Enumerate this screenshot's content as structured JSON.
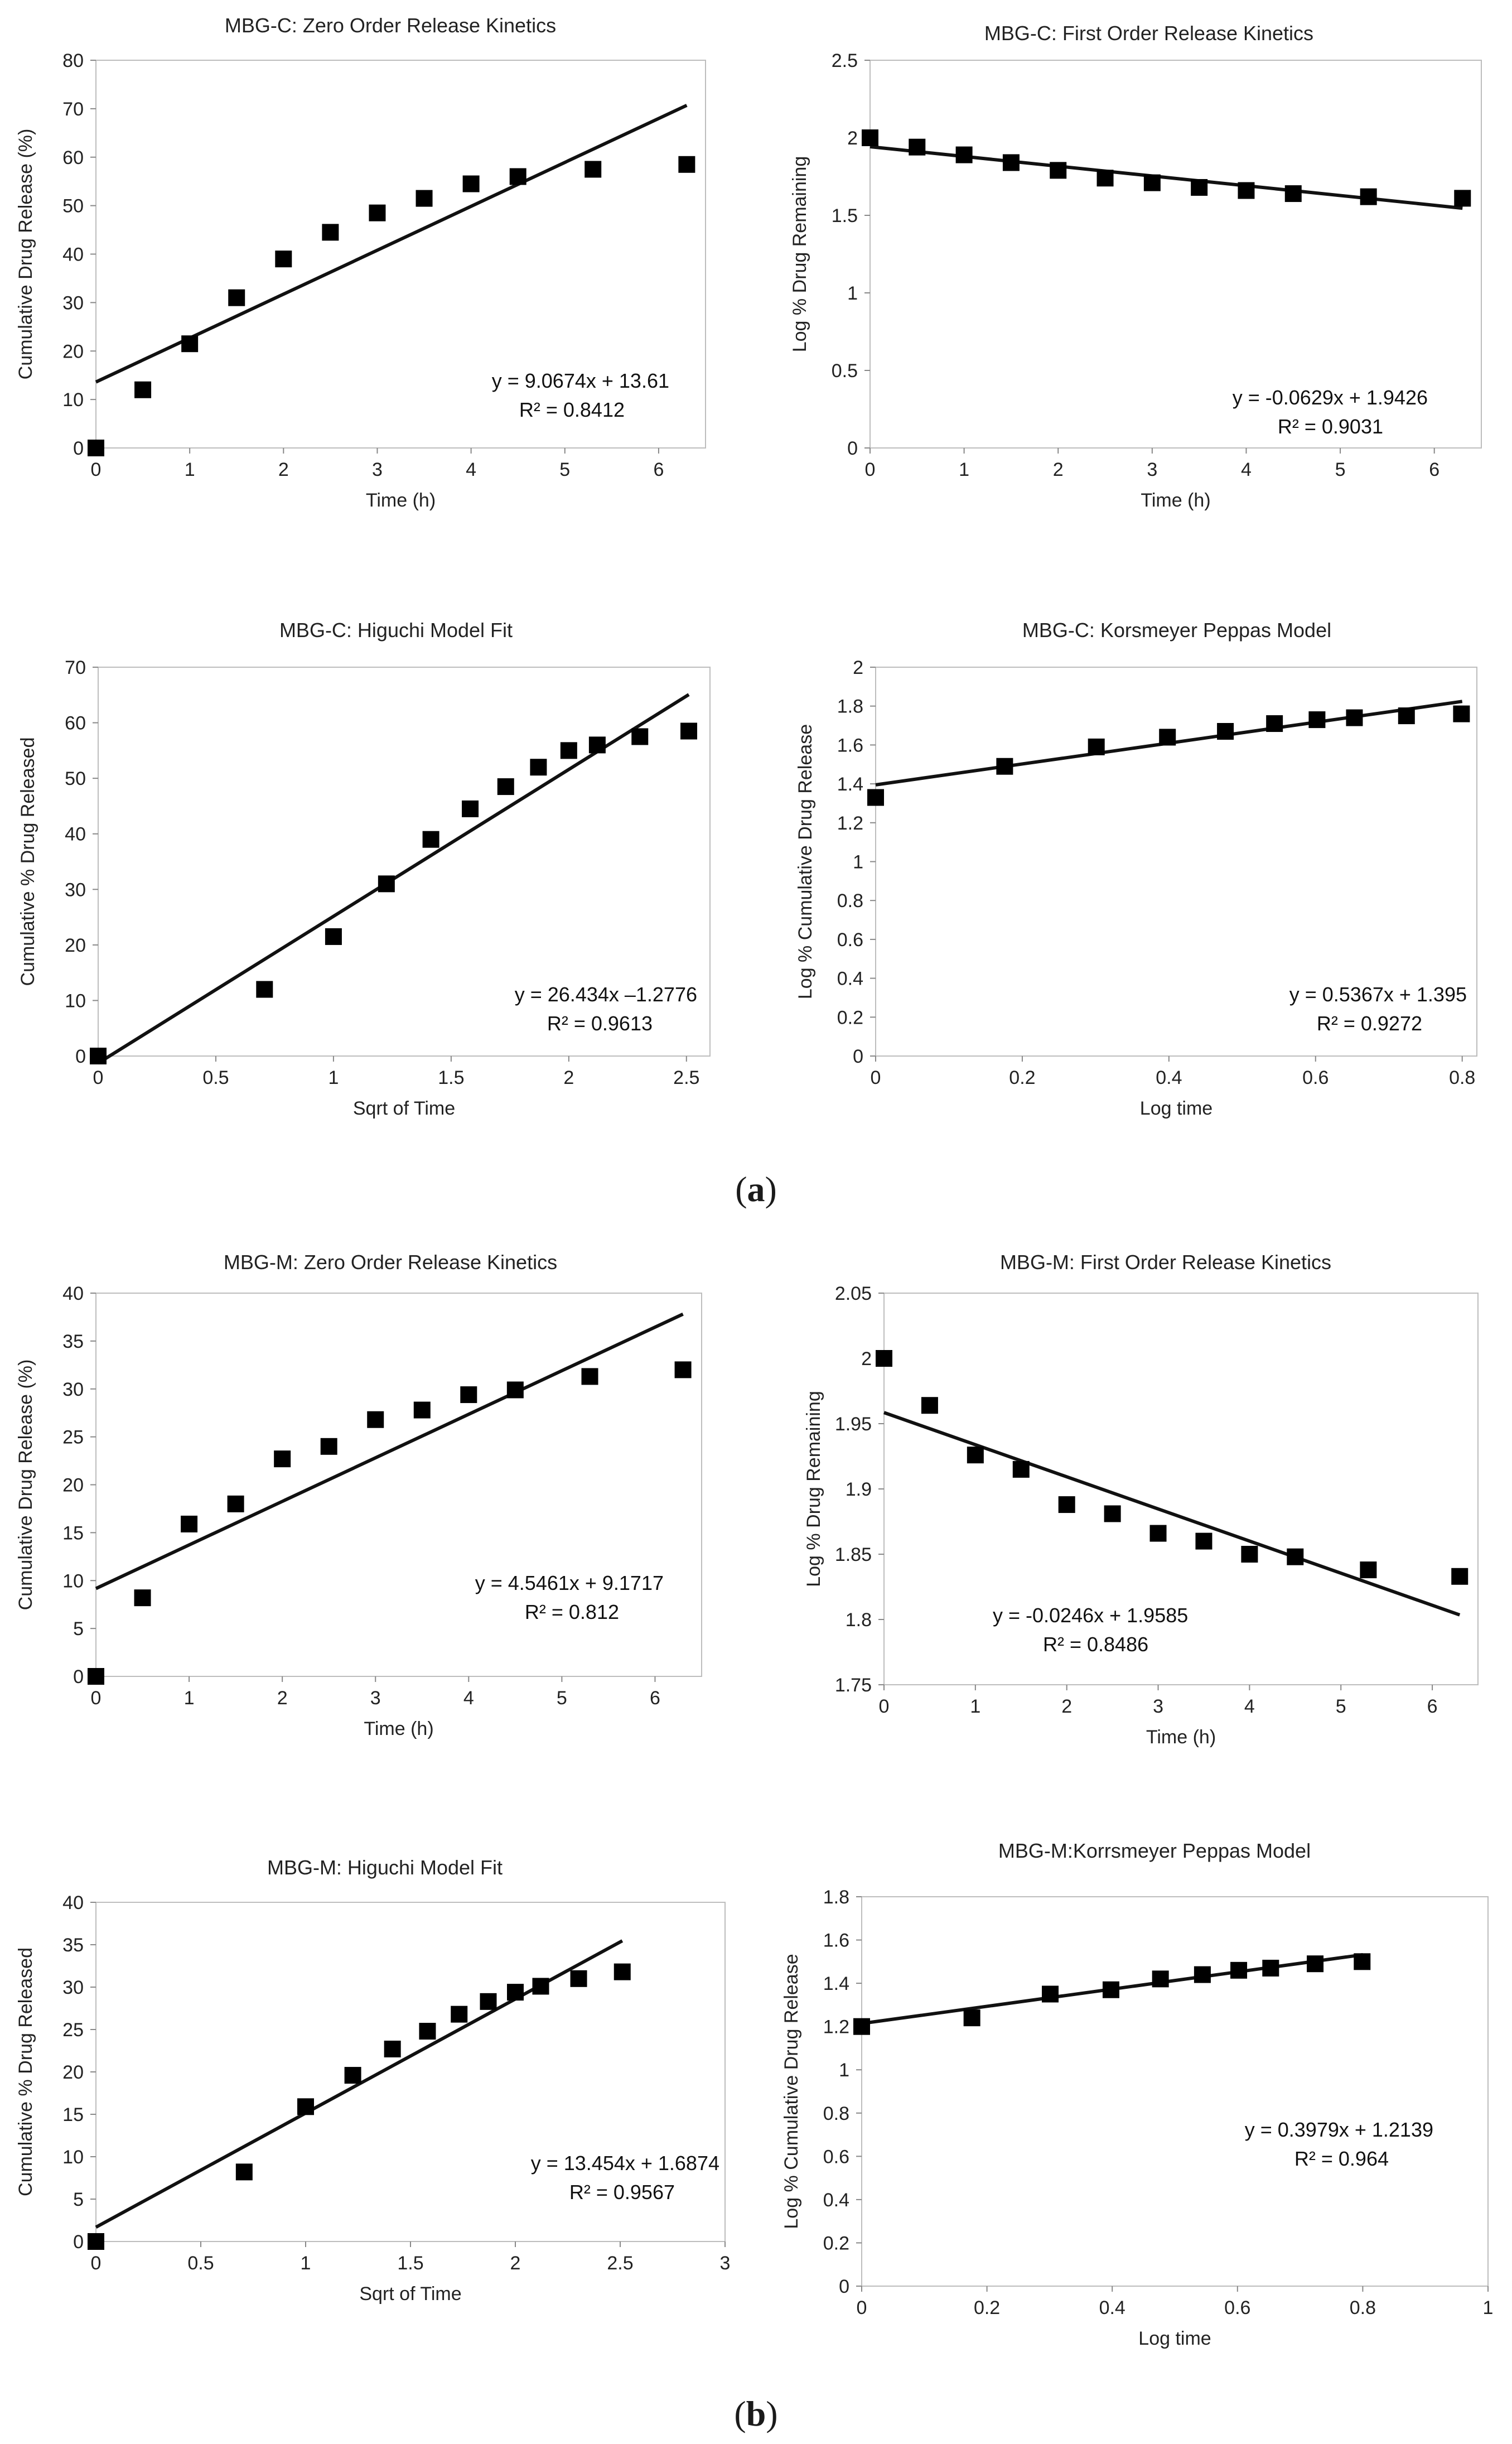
{
  "panel_labels": {
    "a": "a",
    "b": "b"
  },
  "chart_data": [
    {
      "id": "c1",
      "type": "scatter",
      "title": "MBG-C: Zero Order Release Kinetics",
      "xlabel": "Time (h)",
      "ylabel": "Cumulative Drug Release (%)",
      "xlim": [
        0,
        6.5
      ],
      "ylim": [
        0,
        80
      ],
      "xticks": [
        0,
        1,
        2,
        3,
        4,
        5,
        6
      ],
      "yticks": [
        0,
        10,
        20,
        30,
        40,
        50,
        60,
        70,
        80
      ],
      "xtick_labels": [
        "0",
        "1",
        "2",
        "3",
        "4",
        "5",
        "6"
      ],
      "ytick_labels": [
        "0",
        "10",
        "20",
        "30",
        "40",
        "50",
        "60",
        "70",
        "80"
      ],
      "grid": false,
      "x": [
        0,
        0.5,
        1,
        1.5,
        2,
        2.5,
        3,
        3.5,
        4,
        4.5,
        5.3,
        6.3
      ],
      "y": [
        0,
        12,
        21.5,
        31,
        39,
        44.5,
        48.5,
        51.5,
        54.5,
        56,
        57.5,
        58.5
      ],
      "trendline": {
        "x": [
          0,
          6.3
        ],
        "y": [
          13.61,
          70.7
        ]
      },
      "equation": "y = 9.0674x + 13.61",
      "r2": "R² = 0.8412"
    },
    {
      "id": "c2",
      "type": "scatter",
      "title": "MBG-C: First Order Release Kinetics",
      "xlabel": "Time (h)",
      "ylabel": "Log % Drug Remaining",
      "xlim": [
        0,
        6.5
      ],
      "ylim": [
        0,
        2.5
      ],
      "xticks": [
        0,
        1,
        2,
        3,
        4,
        5,
        6
      ],
      "yticks": [
        0,
        0.5,
        1,
        1.5,
        2,
        2.5
      ],
      "xtick_labels": [
        "0",
        "1",
        "2",
        "3",
        "4",
        "5",
        "6"
      ],
      "ytick_labels": [
        "0",
        "0.5",
        "1",
        "1.5",
        "2",
        "2.5"
      ],
      "grid": false,
      "x": [
        0,
        0.5,
        1,
        1.5,
        2,
        2.5,
        3,
        3.5,
        4,
        4.5,
        5.3,
        6.3
      ],
      "y": [
        2.0,
        1.94,
        1.89,
        1.84,
        1.79,
        1.74,
        1.71,
        1.68,
        1.66,
        1.64,
        1.62,
        1.61
      ],
      "trendline": {
        "x": [
          0,
          6.3
        ],
        "y": [
          1.9426,
          1.546
        ]
      },
      "equation": "y = -0.0629x + 1.9426",
      "r2": "R² = 0.9031"
    },
    {
      "id": "c3",
      "type": "scatter",
      "title": "MBG-C: Higuchi Model Fit",
      "xlabel": "Sqrt of Time",
      "ylabel": "Cumulative % Drug Released",
      "xlim": [
        0,
        2.6
      ],
      "ylim": [
        0,
        70
      ],
      "xticks": [
        0,
        0.5,
        1,
        1.5,
        2,
        2.5
      ],
      "yticks": [
        0,
        10,
        20,
        30,
        40,
        50,
        60,
        70
      ],
      "xtick_labels": [
        "0",
        "0.5",
        "1",
        "1.5",
        "2",
        "2.5"
      ],
      "ytick_labels": [
        "0",
        "10",
        "20",
        "30",
        "40",
        "50",
        "60",
        "70"
      ],
      "grid": false,
      "x": [
        0,
        0.707,
        1,
        1.225,
        1.414,
        1.581,
        1.732,
        1.871,
        2,
        2.121,
        2.302,
        2.51
      ],
      "y": [
        0,
        12,
        21.5,
        31,
        39,
        44.5,
        48.5,
        52,
        55,
        56,
        57.5,
        58.5
      ],
      "trendline": {
        "x": [
          0,
          2.51
        ],
        "y": [
          -1.2776,
          65.07
        ]
      },
      "equation": "y = 26.434x –1.2776",
      "r2": "R² = 0.9613"
    },
    {
      "id": "c4",
      "type": "scatter",
      "title": "MBG-C: Korsmeyer Peppas Model",
      "xlabel": "Log time",
      "ylabel": "Log % Cumulative Drug Release",
      "xlim": [
        0,
        0.82
      ],
      "ylim": [
        0,
        2
      ],
      "xticks": [
        0,
        0.2,
        0.4,
        0.6,
        0.8
      ],
      "yticks": [
        0,
        0.2,
        0.4,
        0.6,
        0.8,
        1,
        1.2,
        1.4,
        1.6,
        1.8,
        2
      ],
      "xtick_labels": [
        "0",
        "0.2",
        "0.4",
        "0.6",
        "0.8"
      ],
      "ytick_labels": [
        "0",
        "0.2",
        "0.4",
        "0.6",
        "0.8",
        "1",
        "1.2",
        "1.4",
        "1.6",
        "1.8",
        "2"
      ],
      "grid": false,
      "x": [
        0,
        0.176,
        0.301,
        0.398,
        0.477,
        0.544,
        0.602,
        0.653,
        0.724,
        0.799
      ],
      "y": [
        1.33,
        1.49,
        1.59,
        1.64,
        1.67,
        1.71,
        1.73,
        1.74,
        1.75,
        1.76
      ],
      "trendline": {
        "x": [
          0,
          0.8
        ],
        "y": [
          1.395,
          1.824
        ]
      },
      "equation": "y = 0.5367x + 1.395",
      "r2": "R² = 0.9272"
    },
    {
      "id": "m1",
      "type": "scatter",
      "title": "MBG-M: Zero Order Release Kinetics",
      "xlabel": "Time (h)",
      "ylabel": "Cumulative Drug Release (%)",
      "xlim": [
        0,
        6.5
      ],
      "ylim": [
        0,
        40
      ],
      "xticks": [
        0,
        1,
        2,
        3,
        4,
        5,
        6
      ],
      "yticks": [
        0,
        5,
        10,
        15,
        20,
        25,
        30,
        35,
        40
      ],
      "xtick_labels": [
        "0",
        "1",
        "2",
        "3",
        "4",
        "5",
        "6"
      ],
      "ytick_labels": [
        "0",
        "5",
        "10",
        "15",
        "20",
        "25",
        "30",
        "35",
        "40"
      ],
      "grid": false,
      "x": [
        0,
        0.5,
        1,
        1.5,
        2,
        2.5,
        3,
        3.5,
        4,
        4.5,
        5.3,
        6.3
      ],
      "y": [
        0,
        8.2,
        15.9,
        18,
        22.7,
        24,
        26.8,
        27.8,
        29.4,
        29.9,
        31.3,
        32
      ],
      "trendline": {
        "x": [
          0,
          6.3
        ],
        "y": [
          9.1717,
          37.81
        ]
      },
      "equation": "y = 4.5461x + 9.1717",
      "r2": "R² = 0.812"
    },
    {
      "id": "m2",
      "type": "scatter",
      "title": "MBG-M: First Order Release Kinetics",
      "xlabel": "Time (h)",
      "ylabel": "Log % Drug Remaining",
      "xlim": [
        0,
        6.5
      ],
      "ylim": [
        1.75,
        2.05
      ],
      "xticks": [
        0,
        1,
        2,
        3,
        4,
        5,
        6
      ],
      "yticks": [
        1.75,
        1.8,
        1.85,
        1.9,
        1.95,
        2,
        2.05
      ],
      "xtick_labels": [
        "0",
        "1",
        "2",
        "3",
        "4",
        "5",
        "6"
      ],
      "ytick_labels": [
        "1.75",
        "1.8",
        "1.85",
        "1.9",
        "1.95",
        "2",
        "2.05"
      ],
      "grid": false,
      "x": [
        0,
        0.5,
        1,
        1.5,
        2,
        2.5,
        3,
        3.5,
        4,
        4.5,
        5.3,
        6.3
      ],
      "y": [
        2.0,
        1.964,
        1.926,
        1.915,
        1.888,
        1.881,
        1.866,
        1.86,
        1.85,
        1.848,
        1.838,
        1.833
      ],
      "trendline": {
        "x": [
          0,
          6.3
        ],
        "y": [
          1.9585,
          1.8035
        ]
      },
      "equation": "y = -0.0246x + 1.9585",
      "r2": "R² = 0.8486"
    },
    {
      "id": "m3",
      "type": "scatter",
      "title": "MBG-M: Higuchi Model Fit",
      "xlabel": "Sqrt of Time",
      "ylabel": "Cumulative % Drug Released",
      "xlim": [
        0,
        3
      ],
      "ylim": [
        0,
        40
      ],
      "xticks": [
        0,
        0.5,
        1,
        1.5,
        2,
        2.5,
        3
      ],
      "yticks": [
        0,
        5,
        10,
        15,
        20,
        25,
        30,
        35,
        40
      ],
      "xtick_labels": [
        "0",
        "0.5",
        "1",
        "1.5",
        "2",
        "2.5",
        "3"
      ],
      "ytick_labels": [
        "0",
        "5",
        "10",
        "15",
        "20",
        "25",
        "30",
        "35",
        "40"
      ],
      "grid": false,
      "x": [
        0,
        0.707,
        1,
        1.225,
        1.414,
        1.581,
        1.732,
        1.871,
        2,
        2.121,
        2.302,
        2.51
      ],
      "y": [
        0,
        8.2,
        15.9,
        19.6,
        22.7,
        24.8,
        26.8,
        28.3,
        29.4,
        30.1,
        31,
        31.8
      ],
      "trendline": {
        "x": [
          0,
          2.51
        ],
        "y": [
          1.6874,
          35.46
        ]
      },
      "equation": "y = 13.454x + 1.6874",
      "r2": "R² = 0.9567"
    },
    {
      "id": "m4",
      "type": "scatter",
      "title": "MBG-M:Korrsmeyer Peppas Model",
      "xlabel": "Log time",
      "ylabel": "Log % Cumulative Drug Release",
      "xlim": [
        0,
        1
      ],
      "ylim": [
        0,
        1.8
      ],
      "xticks": [
        0,
        0.2,
        0.4,
        0.6,
        0.8,
        1
      ],
      "yticks": [
        0,
        0.2,
        0.4,
        0.6,
        0.8,
        1,
        1.2,
        1.4,
        1.6,
        1.8
      ],
      "xtick_labels": [
        "0",
        "0.2",
        "0.4",
        "0.6",
        "0.8",
        "1"
      ],
      "ytick_labels": [
        "0",
        "0.2",
        "0.4",
        "0.6",
        "0.8",
        "1",
        "1.2",
        "1.4",
        "1.6",
        "1.8"
      ],
      "grid": false,
      "x": [
        0,
        0.176,
        0.301,
        0.398,
        0.477,
        0.544,
        0.602,
        0.653,
        0.724,
        0.799
      ],
      "y": [
        1.2,
        1.24,
        1.35,
        1.37,
        1.42,
        1.44,
        1.46,
        1.47,
        1.49,
        1.5
      ],
      "trendline": {
        "x": [
          0,
          0.8
        ],
        "y": [
          1.2139,
          1.532
        ]
      },
      "equation": "y = 0.3979x + 1.2139",
      "r2": "R² = 0.964"
    }
  ]
}
